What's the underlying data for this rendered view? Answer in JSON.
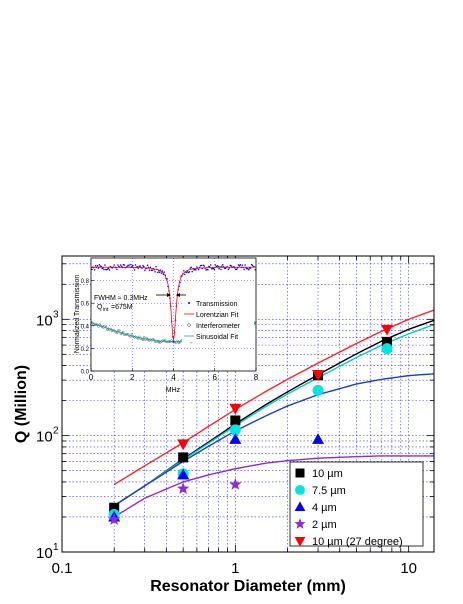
{
  "chart_data": {
    "type": "scatter",
    "xlabel": "Resonator Diameter (mm)",
    "ylabel": "Q (Million)",
    "xscale": "log",
    "yscale": "log",
    "xlim": [
      0.1,
      14
    ],
    "ylim": [
      10,
      3500
    ],
    "x_tick_labels": [
      "0.1",
      "1",
      "10"
    ],
    "y_tick_labels": [
      {
        "base": "10",
        "exp": "1",
        "value": 10
      },
      {
        "base": "10",
        "exp": "2",
        "value": 100
      },
      {
        "base": "10",
        "exp": "3",
        "value": 1000
      }
    ],
    "grid": true,
    "legend_position": "bottom-right",
    "series": [
      {
        "name": "10 µm",
        "marker": "square",
        "color": "#000000",
        "points": [
          [
            0.2,
            24
          ],
          [
            0.5,
            65
          ],
          [
            1,
            135
          ],
          [
            3,
            330
          ],
          [
            7.5,
            640
          ]
        ],
        "fit": [
          [
            0.2,
            25
          ],
          [
            0.3,
            37
          ],
          [
            0.5,
            63
          ],
          [
            0.7,
            88
          ],
          [
            1,
            126
          ],
          [
            1.5,
            185
          ],
          [
            2,
            238
          ],
          [
            3,
            334
          ],
          [
            5,
            505
          ],
          [
            7,
            650
          ],
          [
            10,
            820
          ],
          [
            14,
            980
          ]
        ]
      },
      {
        "name": "7.5 µm",
        "marker": "circle",
        "color": "#00e5e5",
        "points": [
          [
            0.2,
            21
          ],
          [
            0.5,
            47
          ],
          [
            1,
            112
          ],
          [
            3,
            245
          ],
          [
            7.5,
            560
          ]
        ],
        "fit": [
          [
            0.2,
            25
          ],
          [
            0.3,
            37
          ],
          [
            0.5,
            62
          ],
          [
            0.7,
            86
          ],
          [
            1,
            122
          ],
          [
            1.5,
            178
          ],
          [
            2,
            228
          ],
          [
            3,
            315
          ],
          [
            5,
            470
          ],
          [
            7,
            600
          ],
          [
            10,
            750
          ],
          [
            14,
            900
          ]
        ]
      },
      {
        "name": "4 µm",
        "marker": "triangle-up",
        "color": "#0000ff",
        "points": [
          [
            0.2,
            20
          ],
          [
            0.5,
            46
          ],
          [
            1,
            93
          ],
          [
            3,
            93
          ]
        ],
        "fit": [
          [
            0.2,
            25
          ],
          [
            0.3,
            37
          ],
          [
            0.5,
            60
          ],
          [
            0.7,
            81
          ],
          [
            1,
            110
          ],
          [
            1.5,
            148
          ],
          [
            2,
            180
          ],
          [
            3,
            225
          ],
          [
            5,
            278
          ],
          [
            7,
            305
          ],
          [
            10,
            328
          ],
          [
            14,
            340
          ]
        ]
      },
      {
        "name": "2 µm",
        "marker": "star",
        "color": "#8a2be2",
        "points": [
          [
            0.2,
            19
          ],
          [
            0.5,
            35
          ],
          [
            1,
            38
          ]
        ],
        "fit": [
          [
            0.2,
            20
          ],
          [
            0.3,
            29
          ],
          [
            0.5,
            40
          ],
          [
            0.7,
            46
          ],
          [
            1,
            52
          ],
          [
            1.5,
            58
          ],
          [
            2,
            61
          ],
          [
            3,
            64
          ],
          [
            5,
            66
          ],
          [
            7,
            67
          ],
          [
            10,
            67
          ],
          [
            14,
            67
          ]
        ]
      },
      {
        "name": "10 µm (27 degree)",
        "marker": "triangle-down",
        "color": "#ff0000",
        "points": [
          [
            0.5,
            85
          ],
          [
            1,
            172
          ],
          [
            3,
            335
          ],
          [
            7.5,
            820
          ]
        ],
        "fit": [
          [
            0.2,
            38
          ],
          [
            0.3,
            55
          ],
          [
            0.5,
            87
          ],
          [
            0.7,
            120
          ],
          [
            1,
            168
          ],
          [
            1.5,
            240
          ],
          [
            2,
            305
          ],
          [
            3,
            420
          ],
          [
            5,
            620
          ],
          [
            7,
            790
          ],
          [
            10,
            1000
          ],
          [
            14,
            1200
          ]
        ]
      }
    ],
    "inset": {
      "xlabel": "MHz",
      "ylabel": "Normalized Transmission",
      "xlim": [
        0,
        8
      ],
      "ylim": [
        0,
        1
      ],
      "x_ticks": [
        0,
        2,
        4,
        6,
        8
      ],
      "y_ticks": [
        0.0,
        0.2,
        0.4,
        0.6,
        0.8
      ],
      "annotation_fwhm": "FWHM ≈ 0.3MHz",
      "annotation_q_prefix": "Q",
      "annotation_q_sub": "int",
      "annotation_q_value": "=675M",
      "legend": [
        "Transmission",
        "Lorentzian Fit",
        "Interferometer",
        "Sinusoidal Fit"
      ],
      "dip_center": 4.0,
      "dip_width": 0.3,
      "dip_min": 0.28,
      "baseline": 0.92,
      "sine_mean": 0.43,
      "sine_amplitude": 0.17,
      "sine_minimum_at": 4.0,
      "sine_period": 16
    }
  }
}
